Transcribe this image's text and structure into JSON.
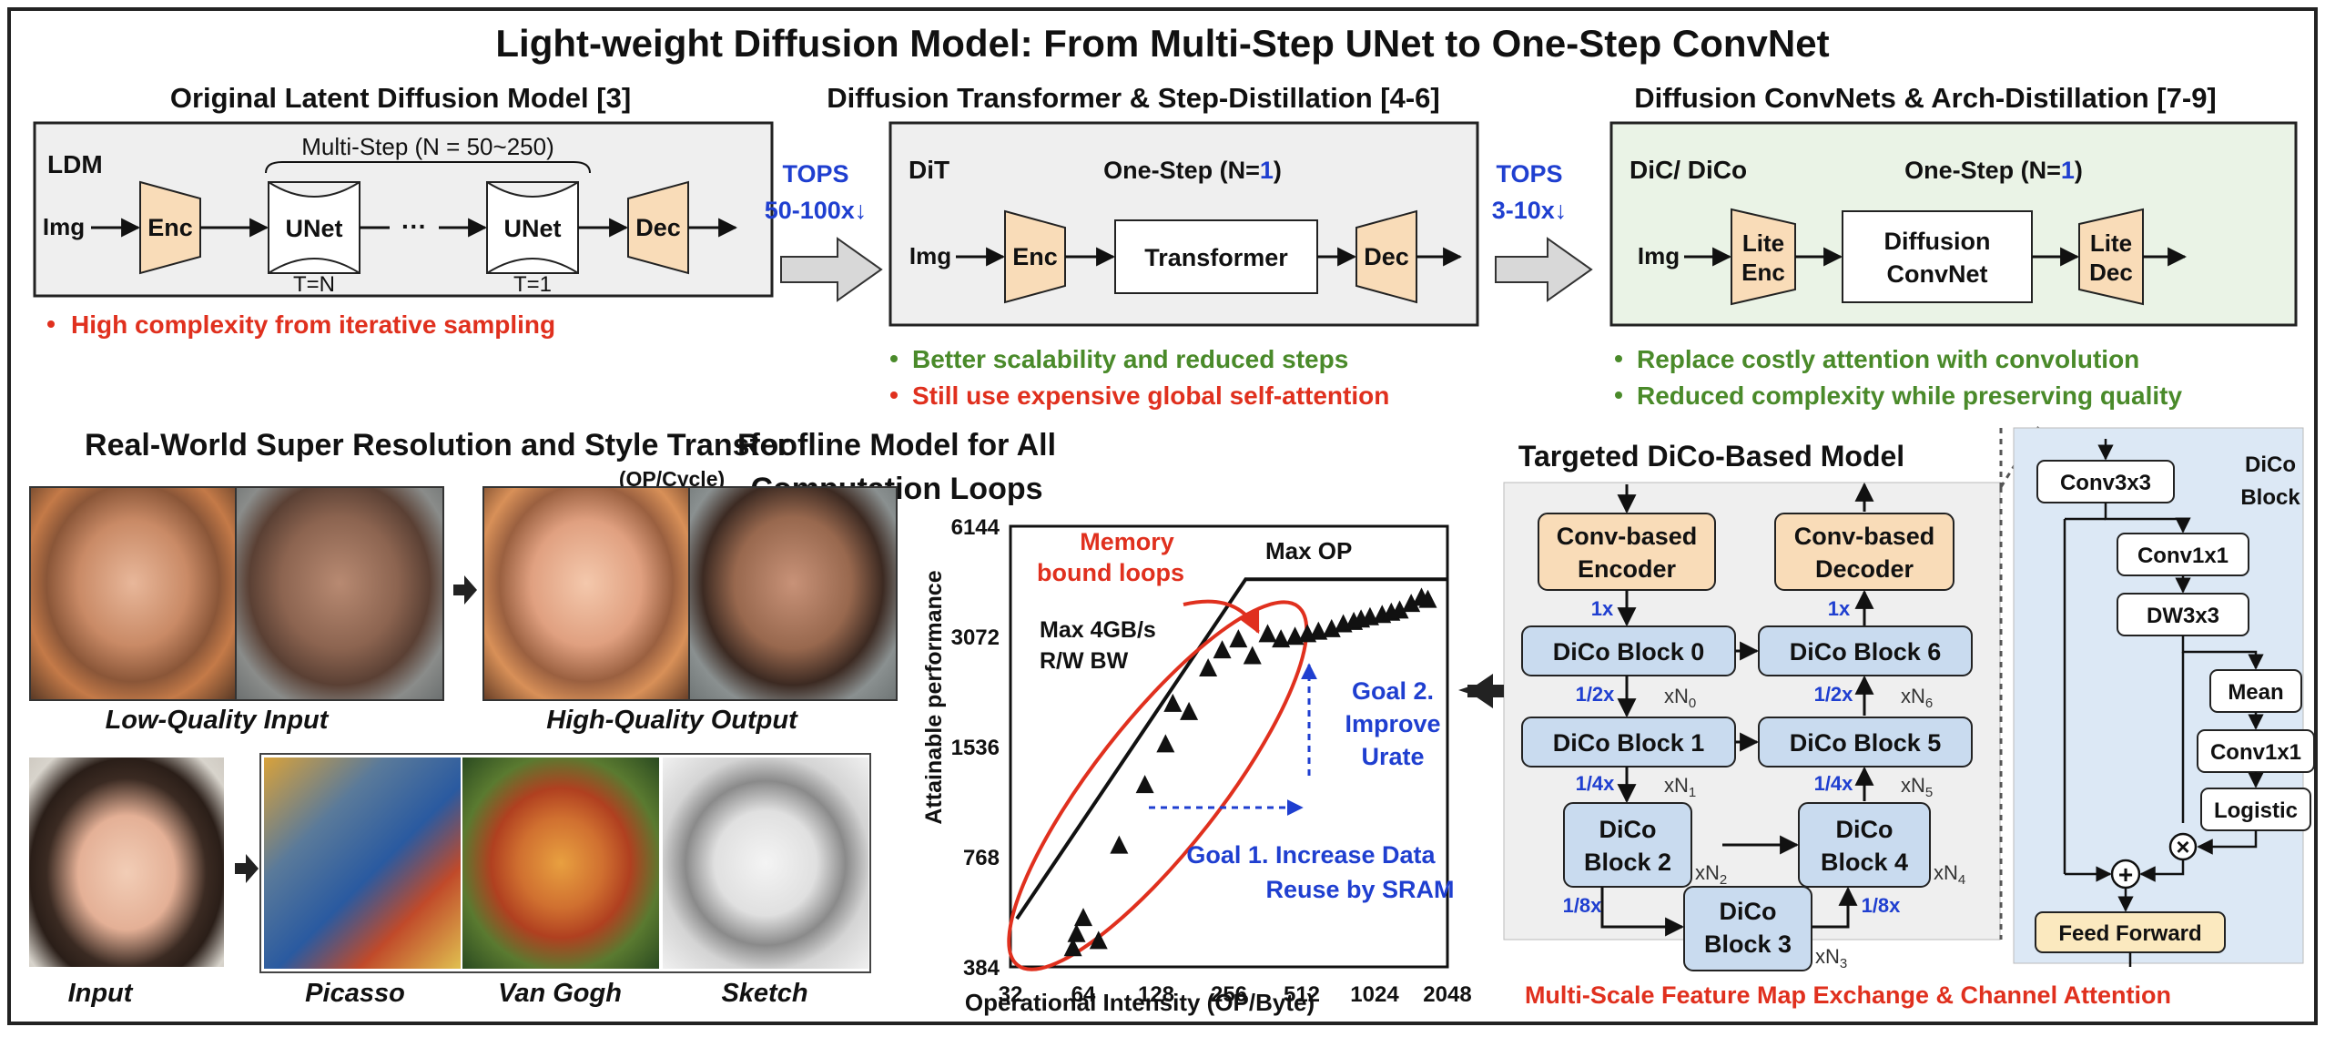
{
  "title": "Light-weight Diffusion Model: From Multi-Step UNet to One-Step ConvNet",
  "colors": {
    "enc_fill": "#f9dcb8",
    "green_panel": "#eaf3e6",
    "gray_panel": "#efefef",
    "block_fill": "#c9dbef",
    "blue_panel": "#dce8f5",
    "red": "#e0301e",
    "green": "#4a8a2a",
    "blue": "#1f3fd0"
  },
  "ldm": {
    "heading": "Original Latent Diffusion Model [3]",
    "tag": "LDM",
    "multistep": "Multi-Step (N = 50~250)",
    "img": "Img",
    "enc": "Enc",
    "unet": "UNet",
    "dots": "···",
    "dec": "Dec",
    "t_n": "T=N",
    "t_1": "T=1",
    "bullet1": "High complexity from iterative sampling"
  },
  "arrow1": {
    "label1": "TOPS",
    "label2": "50-100x↓"
  },
  "dit": {
    "heading": "Diffusion Transformer & Step-Distillation [4-6]",
    "tag": "DiT",
    "onestep_prefix": "One-Step (N=",
    "onestep_n": "1",
    "onestep_suffix": ")",
    "img": "Img",
    "enc": "Enc",
    "transformer": "Transformer",
    "dec": "Dec",
    "bullet1": "Better scalability and reduced steps",
    "bullet2": "Still use expensive global self-attention"
  },
  "arrow2": {
    "label1": "TOPS",
    "label2": "3-10x↓"
  },
  "dic": {
    "heading": "Diffusion ConvNets & Arch-Distillation [7-9]",
    "tag": "DiC/ DiCo",
    "onestep_prefix": "One-Step (N=",
    "onestep_n": "1",
    "onestep_suffix": ")",
    "img": "Img",
    "lite": "Lite",
    "enc": "Enc",
    "diffusion": "Diffusion",
    "convnet": "ConvNet",
    "dec": "Dec",
    "bullet1": "Replace costly attention with convolution",
    "bullet2": "Reduced complexity while preserving quality"
  },
  "realworld": {
    "heading": "Real-World Super Resolution and Style Transfer",
    "low_quality": "Low-Quality Input",
    "high_quality": "High-Quality Output",
    "input": "Input",
    "picasso": "Picasso",
    "vangogh": "Van Gogh",
    "sketch": "Sketch"
  },
  "roofline": {
    "title1": "Roofline Model for All",
    "title2": "Computation Loops",
    "yunit": "(OP/Cycle)",
    "ylabel": "Attainable performance",
    "xlabel": "Operational Intensity (OP/Byte)",
    "max_op": "Max OP",
    "memory_bound1": "Memory",
    "memory_bound2": "bound loops",
    "max_bw1": "Max 4GB/s",
    "max_bw2": "R/W BW",
    "goal2_1": "Goal 2.",
    "goal2_2": "Improve",
    "goal2_3": "Urate",
    "goal1_1": "Goal 1. Increase Data",
    "goal1_2": "Reuse by SRAM"
  },
  "chart_data": {
    "type": "scatter",
    "title": "Roofline Model for All Computation Loops",
    "xlabel": "Operational Intensity (OP/Byte)",
    "ylabel": "Attainable performance",
    "x_scale": "log2",
    "y_scale": "log2",
    "x_ticks": [
      "32",
      "64",
      "128",
      "256",
      "512",
      "1024",
      "2048"
    ],
    "y_ticks": [
      "384",
      "768",
      "1536",
      "3072",
      "6144"
    ],
    "xlim": [
      32,
      2048
    ],
    "ylim": [
      384,
      6144
    ],
    "max_op": 4400,
    "points": [
      [
        60,
        470
      ],
      [
        64,
        520
      ],
      [
        58,
        430
      ],
      [
        74,
        450
      ],
      [
        90,
        820
      ],
      [
        115,
        1200
      ],
      [
        140,
        1550
      ],
      [
        150,
        2000
      ],
      [
        175,
        1900
      ],
      [
        210,
        2500
      ],
      [
        240,
        2800
      ],
      [
        280,
        3000
      ],
      [
        320,
        2700
      ],
      [
        370,
        3100
      ],
      [
        420,
        3000
      ],
      [
        480,
        3050
      ],
      [
        540,
        3100
      ],
      [
        600,
        3150
      ],
      [
        680,
        3200
      ],
      [
        760,
        3300
      ],
      [
        840,
        3350
      ],
      [
        900,
        3400
      ],
      [
        980,
        3450
      ],
      [
        1100,
        3500
      ],
      [
        1200,
        3550
      ],
      [
        1300,
        3600
      ],
      [
        1450,
        3750
      ],
      [
        1600,
        3900
      ],
      [
        1700,
        3850
      ]
    ]
  },
  "targeted": {
    "heading": "Targeted DiCo-Based Model",
    "conv_based": "Conv-based",
    "encoder": "Encoder",
    "decoder": "Decoder",
    "block0": "DiCo Block 0",
    "block1": "DiCo Block 1",
    "block5": "DiCo Block 5",
    "block6": "DiCo Block 6",
    "dico": "DiCo",
    "block2": "Block 2",
    "block3": "Block 3",
    "block4": "Block 4",
    "s1x": "1x",
    "s2x": "1/2x",
    "s4x": "1/4x",
    "s8x": "1/8x",
    "xn": "xN",
    "n0": "0",
    "n1": "1",
    "n2": "2",
    "n3": "3",
    "n4": "4",
    "n5": "5",
    "n6": "6",
    "footer": "Multi-Scale Feature Map Exchange & Channel Attention"
  },
  "dicoblock": {
    "title1": "DiCo",
    "title2": "Block",
    "conv3x3": "Conv3x3",
    "conv1x1a": "Conv1x1",
    "dw3x3": "DW3x3",
    "mean": "Mean",
    "conv1x1b": "Conv1x1",
    "logistic": "Logistic",
    "plus": "+",
    "times": "×",
    "feedforward": "Feed Forward"
  }
}
